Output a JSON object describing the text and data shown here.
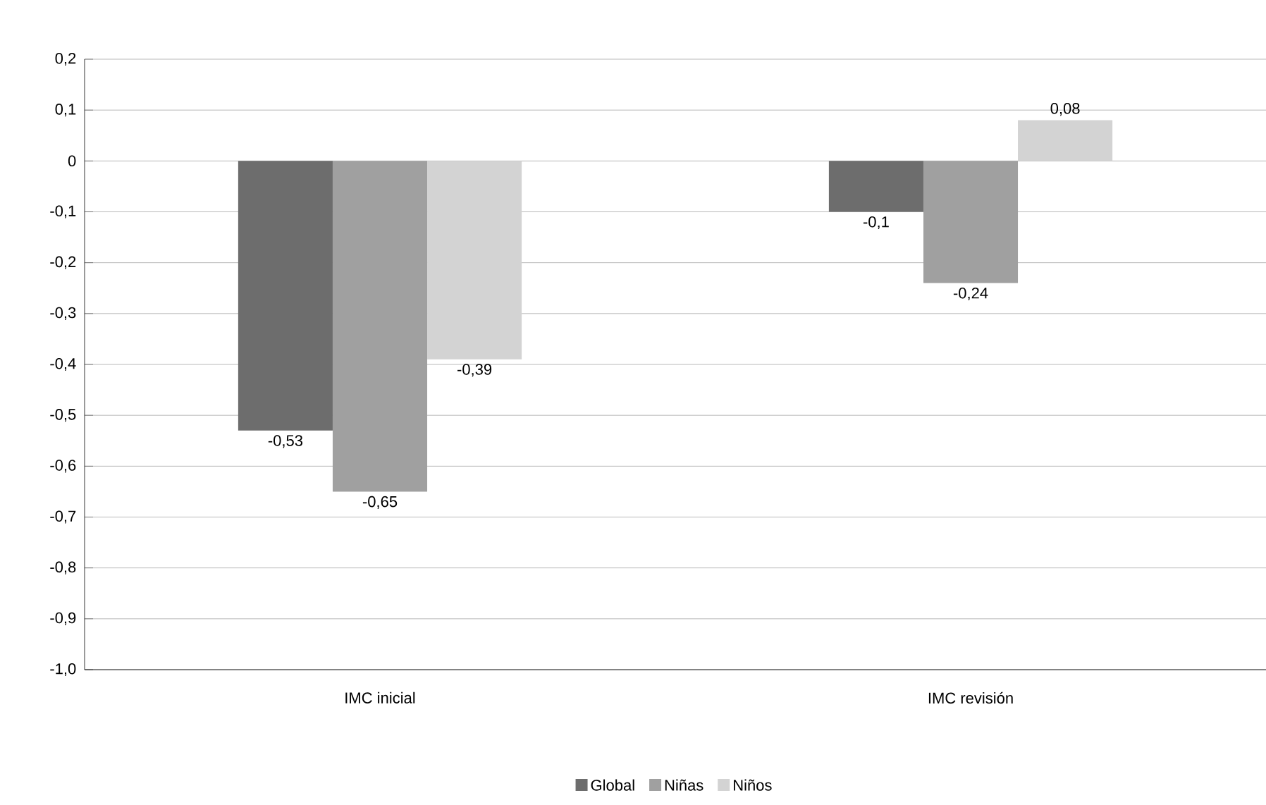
{
  "chart_data": {
    "type": "bar",
    "categories": [
      "IMC inicial",
      "IMC revisión"
    ],
    "series": [
      {
        "name": "Global",
        "color": "#6d6d6d",
        "values": [
          -0.53,
          -0.1
        ],
        "value_labels": [
          "-0,53",
          "-0,1"
        ]
      },
      {
        "name": "Niñas",
        "color": "#a0a0a0",
        "values": [
          -0.65,
          -0.24
        ],
        "value_labels": [
          "-0,65",
          "-0,24"
        ]
      },
      {
        "name": "Niños",
        "color": "#d3d3d3",
        "values": [
          -0.39,
          0.08
        ],
        "value_labels": [
          "-0,39",
          "0,08"
        ]
      }
    ],
    "ylim": [
      -1.0,
      0.2
    ],
    "yticks": [
      {
        "value": 0.2,
        "label": "0,2"
      },
      {
        "value": 0.1,
        "label": "0,1"
      },
      0,
      {
        "value": -0.1,
        "label": "-0,1"
      },
      {
        "value": -0.2,
        "label": "-0,2"
      },
      {
        "value": -0.3,
        "label": "-0,3"
      },
      {
        "value": -0.4,
        "label": "-0,4"
      },
      {
        "value": -0.5,
        "label": "-0,5"
      },
      {
        "value": -0.6,
        "label": "-0,6"
      },
      {
        "value": -0.7,
        "label": "-0,7"
      },
      {
        "value": -0.8,
        "label": "-0,8"
      },
      {
        "value": -0.9,
        "label": "-0,9"
      },
      {
        "value": -1.0,
        "label": "-1,0"
      }
    ],
    "grid": "y",
    "legend": "bottom"
  }
}
